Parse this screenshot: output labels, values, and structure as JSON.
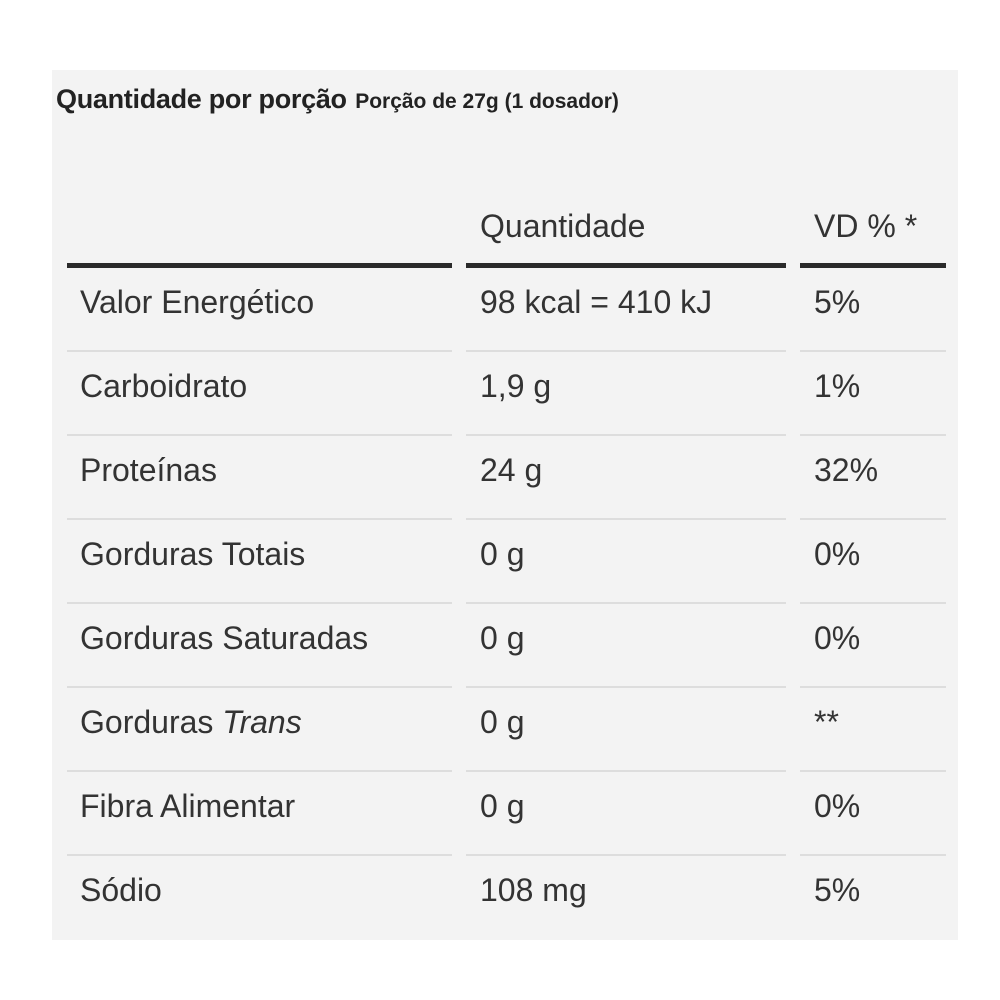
{
  "heading": {
    "title": "Quantidade por porção",
    "serving": "Porção de 27g (1 dosador)"
  },
  "table": {
    "columns": [
      "",
      "Quantidade",
      "VD % *"
    ],
    "rows": [
      {
        "name": "Valor Energético",
        "amount": "98 kcal = 410 kJ",
        "dv": "5%"
      },
      {
        "name": "Carboidrato",
        "amount": "1,9 g",
        "dv": "1%"
      },
      {
        "name": "Proteínas",
        "amount": "24 g",
        "dv": "32%"
      },
      {
        "name": "Gorduras Totais",
        "amount": "0 g",
        "dv": "0%"
      },
      {
        "name": "Gorduras Saturadas",
        "amount": "0 g",
        "dv": "0%"
      },
      {
        "name": "Gorduras",
        "name_italic": "Trans",
        "amount": "0 g",
        "dv": "**"
      },
      {
        "name": "Fibra Alimentar",
        "amount": "0 g",
        "dv": "0%"
      },
      {
        "name": "Sódio",
        "amount": "108 mg",
        "dv": "5%"
      }
    ]
  }
}
